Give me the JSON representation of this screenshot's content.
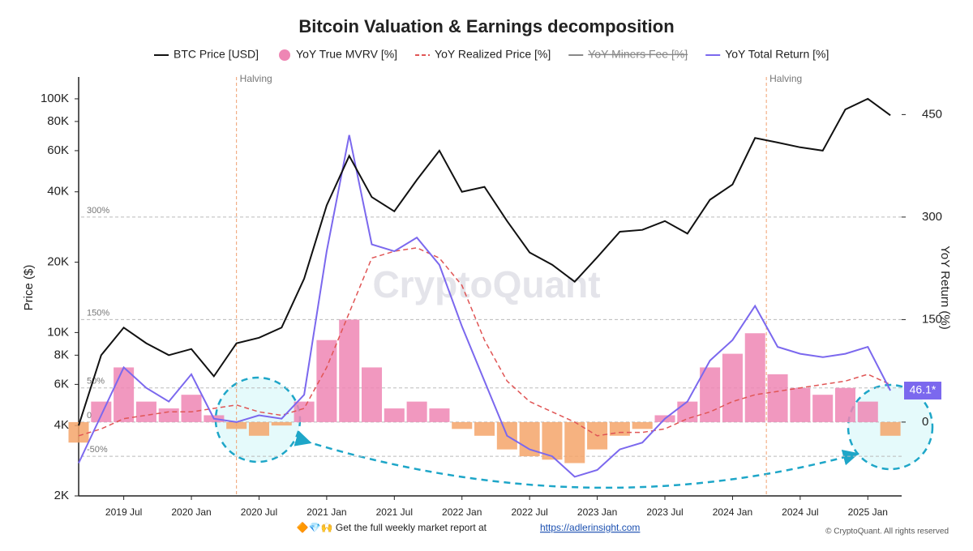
{
  "chart_data": {
    "type": "line",
    "title": "Bitcoin Valuation & Earnings decomposition",
    "ylabel": "Price ($)",
    "y2label": "YoY Return (%)",
    "log_y": true,
    "ylim": [
      2000,
      124000
    ],
    "yticks": [
      {
        "value": 2000,
        "label": "2K"
      },
      {
        "value": 4000,
        "label": "4K"
      },
      {
        "value": 6000,
        "label": "6K"
      },
      {
        "value": 8000,
        "label": "8K"
      },
      {
        "value": 10000,
        "label": "10K"
      },
      {
        "value": 20000,
        "label": "20K"
      },
      {
        "value": 40000,
        "label": "40K"
      },
      {
        "value": 60000,
        "label": "60K"
      },
      {
        "value": 80000,
        "label": "80K"
      },
      {
        "value": 100000,
        "label": "100K"
      }
    ],
    "y2lim": [
      -108,
      505
    ],
    "y2ticks": [
      0,
      150,
      300,
      450
    ],
    "y2_grid": [
      {
        "value": 300,
        "label": "300%"
      },
      {
        "value": 150,
        "label": "150%"
      },
      {
        "value": 50,
        "label": "50%"
      },
      0,
      {
        "value": -50,
        "label": "-50%"
      }
    ],
    "xlim": [
      "2019-03",
      "2025-04"
    ],
    "xticks": [
      {
        "value": "2019-07",
        "label": "2019 Jul"
      },
      {
        "value": "2020-01",
        "label": "2020 Jan"
      },
      {
        "value": "2020-07",
        "label": "2020 Jul"
      },
      {
        "value": "2021-01",
        "label": "2021 Jan"
      },
      {
        "value": "2021-07",
        "label": "2021 Jul"
      },
      {
        "value": "2022-01",
        "label": "2022 Jan"
      },
      {
        "value": "2022-07",
        "label": "2022 Jul"
      },
      {
        "value": "2023-01",
        "label": "2023 Jan"
      },
      {
        "value": "2023-07",
        "label": "2023 Jul"
      },
      {
        "value": "2024-01",
        "label": "2024 Jan"
      },
      {
        "value": "2024-07",
        "label": "2024 Jul"
      },
      {
        "value": "2025-01",
        "label": "2025 Jan"
      }
    ],
    "x": [
      "2019-03",
      "2019-05",
      "2019-07",
      "2019-09",
      "2019-11",
      "2020-01",
      "2020-03",
      "2020-05",
      "2020-07",
      "2020-09",
      "2020-11",
      "2021-01",
      "2021-03",
      "2021-05",
      "2021-07",
      "2021-09",
      "2021-11",
      "2022-01",
      "2022-03",
      "2022-05",
      "2022-07",
      "2022-09",
      "2022-11",
      "2023-01",
      "2023-03",
      "2023-05",
      "2023-07",
      "2023-09",
      "2023-11",
      "2024-01",
      "2024-03",
      "2024-05",
      "2024-07",
      "2024-09",
      "2024-11",
      "2025-01",
      "2025-03"
    ],
    "series": [
      {
        "name": "BTC Price [USD]",
        "color": "#111111",
        "style": "line",
        "values": [
          4000,
          8000,
          10500,
          9000,
          8000,
          8500,
          6500,
          9000,
          9500,
          10500,
          17000,
          35000,
          57000,
          38000,
          33000,
          45000,
          60000,
          40000,
          42000,
          30000,
          22000,
          19500,
          16500,
          21000,
          27000,
          27500,
          30000,
          26500,
          37000,
          43000,
          68000,
          65000,
          62000,
          60000,
          90000,
          100000,
          85000
        ]
      },
      {
        "name": "YoY True MVRV [%]",
        "color": "#ee86b4",
        "negative_color": "#f4a46a",
        "style": "bars",
        "axis": "y2",
        "values": [
          -30,
          30,
          80,
          30,
          20,
          40,
          10,
          -10,
          -20,
          -5,
          30,
          120,
          150,
          80,
          20,
          30,
          20,
          -10,
          -20,
          -40,
          -50,
          -55,
          -60,
          -40,
          -20,
          -10,
          10,
          30,
          80,
          100,
          130,
          70,
          50,
          40,
          50,
          30,
          -20
        ]
      },
      {
        "name": "YoY Realized Price [%]",
        "color": "#e05555",
        "style": "dashed",
        "axis": "y2",
        "values": [
          -20,
          -10,
          5,
          10,
          15,
          15,
          20,
          25,
          15,
          10,
          20,
          80,
          160,
          240,
          250,
          255,
          240,
          200,
          120,
          60,
          30,
          15,
          0,
          -20,
          -15,
          -15,
          -10,
          5,
          15,
          30,
          40,
          45,
          50,
          55,
          60,
          70,
          55
        ]
      },
      {
        "name": "YoY Miners Fee [%]",
        "color": "#888888",
        "hidden": true
      },
      {
        "name": "YoY Total Return [%]",
        "color": "#7b68ee",
        "style": "line",
        "axis": "y2",
        "last_label": "46.1*",
        "values": [
          -60,
          10,
          80,
          50,
          30,
          70,
          5,
          0,
          10,
          5,
          40,
          250,
          420,
          260,
          250,
          270,
          230,
          140,
          60,
          -20,
          -40,
          -50,
          -80,
          -70,
          -40,
          -30,
          5,
          30,
          90,
          120,
          170,
          110,
          100,
          95,
          100,
          110,
          46.1
        ]
      }
    ],
    "annotations": [
      {
        "x": "2020-05",
        "label": "Halving"
      },
      {
        "x": "2024-04",
        "label": "Halving"
      }
    ],
    "watermark": "CryptoQuant",
    "footer": {
      "text": "🔶💎🙌 Get the full weekly market report at",
      "link": "https://adlerinsight.com",
      "copyright": "© CryptoQuant. All rights reserved"
    }
  }
}
